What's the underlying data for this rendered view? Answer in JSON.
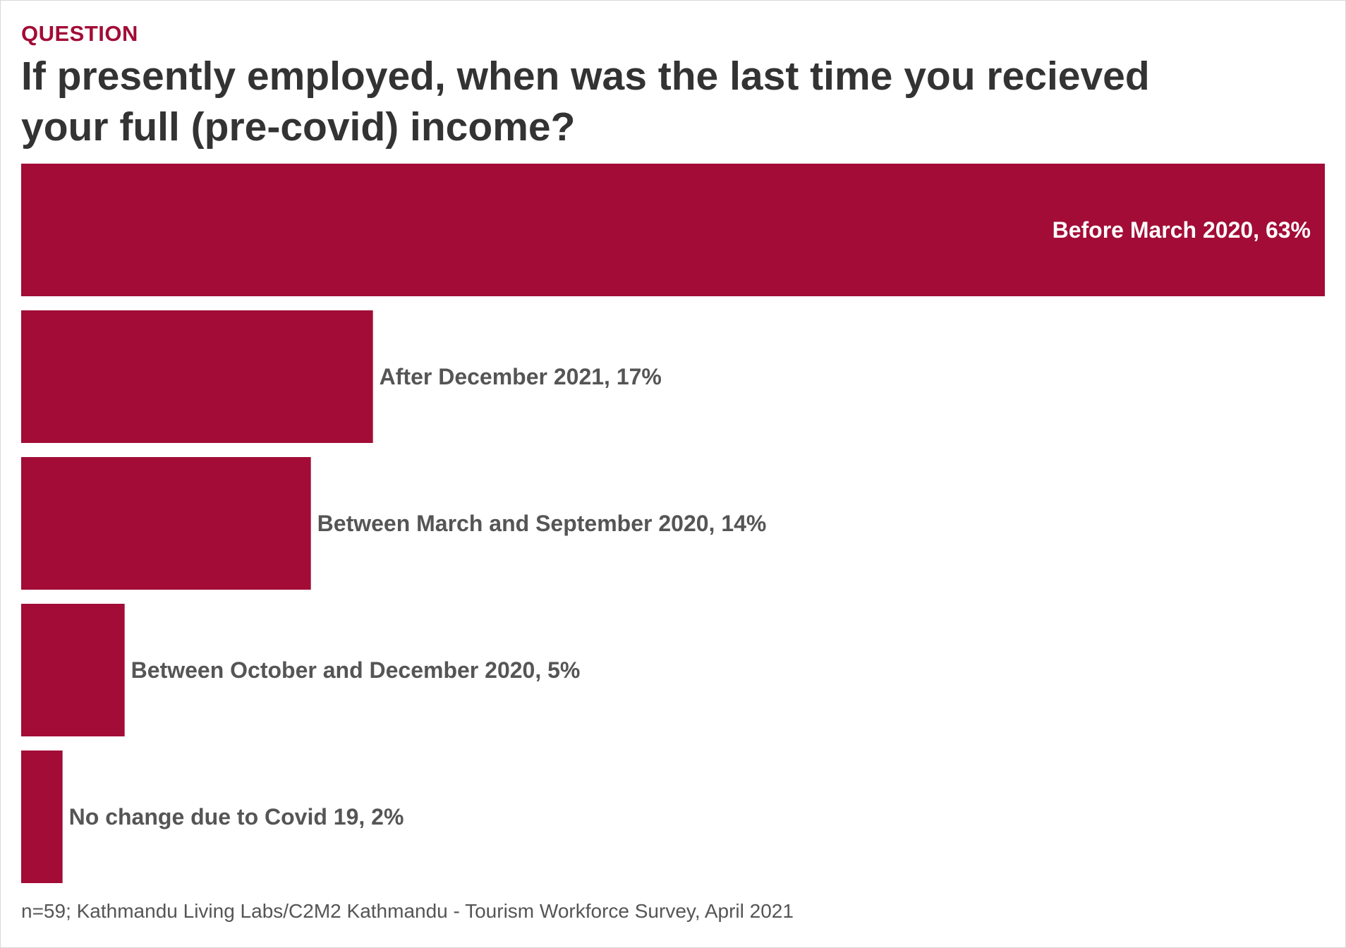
{
  "header": {
    "kicker": "QUESTION",
    "title": "If presently employed, when was the last time you recieved your full (pre-covid) income?"
  },
  "footer": {
    "source": "n=59; Kathmandu Living Labs/C2M2 Kathmandu - Tourism Workforce Survey, April 2021"
  },
  "colors": {
    "bar": "#a20c36",
    "label_outside": "#555555",
    "label_inside": "#ffffff",
    "accent": "#a20c36"
  },
  "chart_data": {
    "type": "bar",
    "orientation": "horizontal",
    "categories": [
      "Before March 2020",
      "After December 2021",
      "Between March and September 2020",
      "Between October and December 2020",
      "No change due to Covid 19"
    ],
    "values": [
      63,
      17,
      14,
      5,
      2
    ],
    "unit": "%",
    "labels": [
      "Before March 2020, 63%",
      "After December 2021, 17%",
      "Between March and September 2020, 14%",
      "Between October and December 2020, 5%",
      "No change due to Covid 19, 2%"
    ],
    "xlim": [
      0,
      63
    ],
    "grid": false,
    "legend": "none"
  }
}
